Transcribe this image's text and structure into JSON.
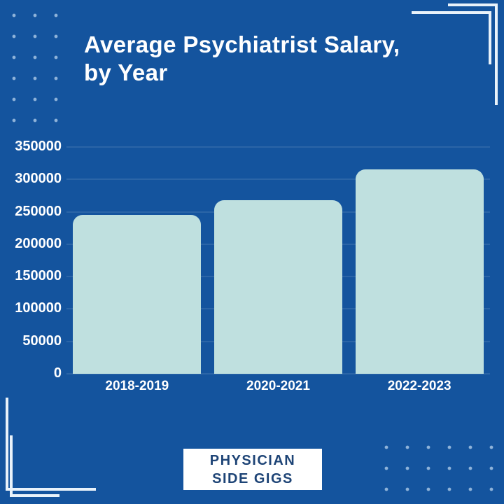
{
  "title": {
    "line1": "Average Psychiatrist Salary,",
    "line2": "by Year"
  },
  "chart_data": {
    "type": "bar",
    "title": "Average Psychiatrist Salary, by Year",
    "categories": [
      "2018-2019",
      "2020-2021",
      "2022-2023"
    ],
    "values": [
      245000,
      268000,
      315000
    ],
    "xlabel": "",
    "ylabel": "",
    "ylim": [
      0,
      350000
    ],
    "ytick_step": 50000,
    "ytick_labels": [
      "0",
      "50000",
      "100000",
      "150000",
      "200000",
      "250000",
      "300000",
      "350000"
    ],
    "grid": true,
    "legend": "none",
    "bar_color": "#bfe0df"
  },
  "logo": {
    "line1": "PHYSICIAN",
    "line2": "SIDE GIGS"
  },
  "colors": {
    "background": "#14549e",
    "bar": "#bfe0df",
    "text": "#ffffff",
    "grid": "rgba(255,255,255,0.10)",
    "logo_text": "#1e4476",
    "logo_bg": "#ffffff",
    "bracket": "#e9f2fa",
    "dots": "#8fb3d9"
  }
}
